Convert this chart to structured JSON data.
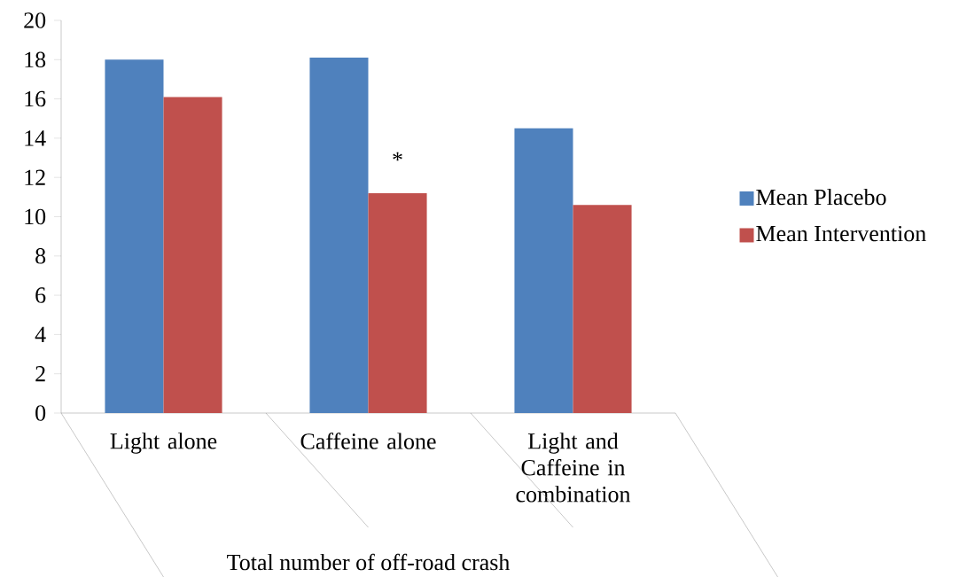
{
  "chart_data": {
    "type": "bar",
    "categories": [
      "Light alone",
      "Caffeine alone",
      "Light and Caffeine in combination"
    ],
    "series": [
      {
        "name": "Mean Placebo",
        "color": "#4f81bd",
        "values": [
          18,
          18.1,
          14.5
        ]
      },
      {
        "name": "Mean Intervention",
        "color": "#c0504d",
        "values": [
          16.1,
          11.2,
          10.6
        ]
      }
    ],
    "xlabel": "Total number of off-road crash",
    "annotations": [
      {
        "text": "*",
        "x": "Caffeine alone",
        "y": 12.9
      }
    ],
    "ylim": [
      0,
      20
    ],
    "yticks": [
      0,
      2,
      4,
      6,
      8,
      10,
      12,
      14,
      16,
      18,
      20
    ],
    "legend": "right"
  }
}
